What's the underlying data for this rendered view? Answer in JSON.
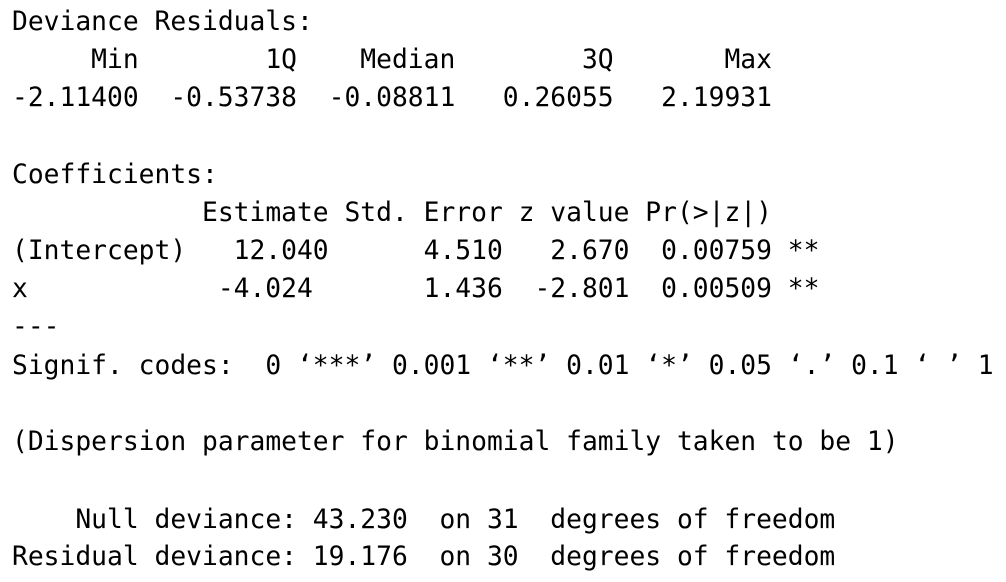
{
  "deviance_residuals": {
    "title": "Deviance Residuals:",
    "headers": [
      "Min",
      "1Q",
      "Median",
      "3Q",
      "Max"
    ],
    "values": [
      "-2.11400",
      "-0.53738",
      "-0.08811",
      "0.26055",
      "2.19931"
    ]
  },
  "coefficients": {
    "title": "Coefficients:",
    "headers": [
      "Estimate",
      "Std. Error",
      "z value",
      "Pr(>|z|)"
    ],
    "rows": [
      [
        "(Intercept)",
        "12.040",
        "4.510",
        "2.670",
        "0.00759",
        "**"
      ],
      [
        "x",
        "-4.024",
        "1.436",
        "-2.801",
        "0.00509",
        "**"
      ]
    ],
    "separator": "---",
    "signif_codes": "Signif. codes:  0 ‘***’ 0.001 ‘**’ 0.01 ‘*’ 0.05 ‘.’ 0.1 ‘ ’ 1"
  },
  "dispersion": "(Dispersion parameter for binomial family taken to be 1)",
  "deviance": [
    {
      "label": "Null deviance:",
      "value": "43.230",
      "df": "on 31",
      "unit": "degrees of freedom"
    },
    {
      "label": "Residual deviance:",
      "value": "19.176",
      "df": "on 30",
      "unit": "degrees of freedom"
    }
  ]
}
